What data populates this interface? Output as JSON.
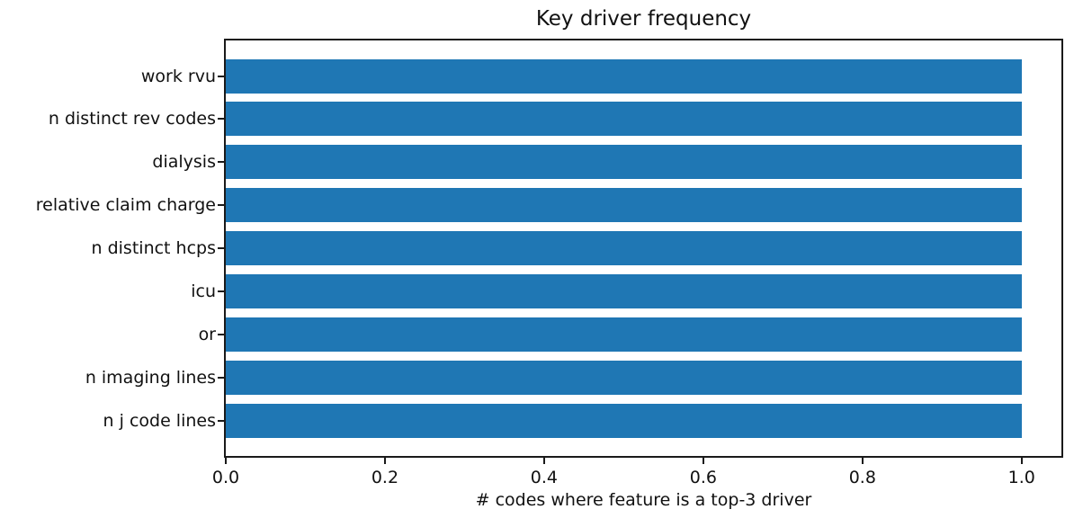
{
  "chart_data": {
    "type": "bar",
    "orientation": "horizontal",
    "title": "Key driver frequency",
    "xlabel": "# codes where feature is a top-3 driver",
    "ylabel": "",
    "categories": [
      "work rvu",
      "n distinct rev codes",
      "dialysis",
      "relative claim charge",
      "n distinct hcps",
      "icu",
      "or",
      "n imaging lines",
      "n j code lines"
    ],
    "values": [
      1.0,
      1.0,
      1.0,
      1.0,
      1.0,
      1.0,
      1.0,
      1.0,
      1.0
    ],
    "xlim": [
      0,
      1.05
    ],
    "xticks": [
      0.0,
      0.2,
      0.4,
      0.6,
      0.8,
      1.0
    ],
    "xtick_labels": [
      "0.0",
      "0.2",
      "0.4",
      "0.6",
      "0.8",
      "1.0"
    ],
    "bar_color": "#1f77b4",
    "spine_color": "#1a1a1a",
    "grid": false,
    "legend": null
  }
}
